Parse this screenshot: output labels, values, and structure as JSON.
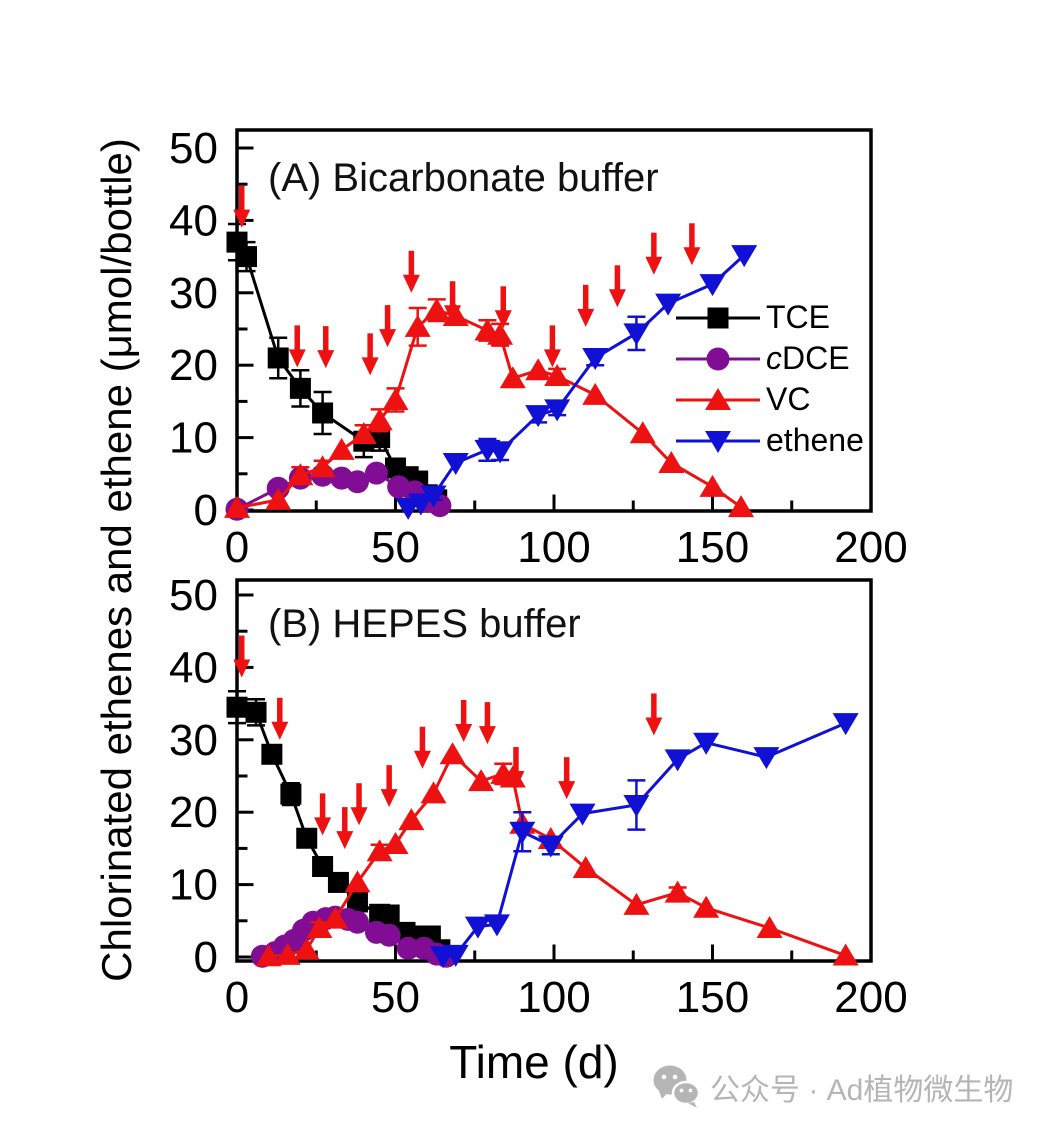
{
  "figure": {
    "ylabel": "Chlorinated ethenes and ethene (μmol/bottle)",
    "xlabel": "Time (d)"
  },
  "colors": {
    "tce": "#000000",
    "cdce": "#800d94",
    "vc": "#ee1111",
    "ethene": "#1111d6",
    "arrow": "#ee1111",
    "axis": "#000000",
    "watermark": "#b5b5b5"
  },
  "legend": {
    "entries": [
      {
        "italic_prefix": "",
        "label": "TCE",
        "series": "TCE"
      },
      {
        "italic_prefix": "c",
        "label": "DCE",
        "series": "cDCE"
      },
      {
        "italic_prefix": "",
        "label": "VC",
        "series": "VC"
      },
      {
        "italic_prefix": "",
        "label": "ethene",
        "series": "ethene"
      }
    ]
  },
  "watermark": {
    "icon": "wechat-icon",
    "text": "公众号 · Ad植物微生物"
  },
  "chart_data": [
    {
      "panel": "A",
      "type": "line",
      "title": "(A) Bicarbonate buffer",
      "xlabel": "Time (d)",
      "ylabel": "Chlorinated ethenes and ethene (μmol/bottle)",
      "xlim": [
        0,
        200
      ],
      "ylim": [
        0,
        50
      ],
      "xticks": [
        0,
        50,
        100,
        150,
        200
      ],
      "yticks": [
        0,
        10,
        20,
        30,
        40,
        50
      ],
      "x_minor_step": 25,
      "y_minor_step": 5,
      "grid": false,
      "legend_position": "inside-right",
      "series": [
        {
          "name": "TCE",
          "marker": "square",
          "color": "#000000",
          "points": [
            [
              0,
              37,
              2.5
            ],
            [
              3,
              35,
              2
            ],
            [
              13,
              21,
              2.8
            ],
            [
              20,
              16.8,
              2.5
            ],
            [
              27,
              13.4,
              2.9
            ],
            [
              40,
              9.5,
              2.2
            ],
            [
              45,
              10,
              1.8
            ],
            [
              50,
              5.8,
              1
            ],
            [
              54,
              4.6,
              0
            ],
            [
              57,
              4,
              0
            ],
            [
              60,
              2.1,
              0
            ],
            [
              63,
              1.4,
              0
            ]
          ]
        },
        {
          "name": "cDCE",
          "marker": "circle",
          "color": "#800d94",
          "points": [
            [
              0,
              0.1,
              0
            ],
            [
              13,
              3,
              0
            ],
            [
              20,
              4.4,
              0.8
            ],
            [
              27,
              4.8,
              0.7
            ],
            [
              33,
              4.4,
              0
            ],
            [
              38,
              3.9,
              0
            ],
            [
              44,
              5.1,
              0.6
            ],
            [
              51,
              3.2,
              0
            ],
            [
              56,
              2.5,
              0
            ],
            [
              60,
              1.2,
              0
            ],
            [
              64,
              0.6,
              0
            ]
          ]
        },
        {
          "name": "VC",
          "marker": "triangle-up",
          "color": "#ee1111",
          "points": [
            [
              0,
              0.3,
              0
            ],
            [
              13,
              1.4,
              0
            ],
            [
              20,
              4.8,
              1.1
            ],
            [
              27,
              5.9,
              0.9
            ],
            [
              33,
              8.3,
              0
            ],
            [
              40,
              10.5,
              1.2
            ],
            [
              45,
              12.4,
              1.5
            ],
            [
              50,
              15.2,
              1.6
            ],
            [
              57,
              25.3,
              2.6
            ],
            [
              63,
              27.6,
              1.5
            ],
            [
              69,
              26.8,
              0
            ],
            [
              79,
              24.8,
              1.4
            ],
            [
              83,
              24.2,
              1.5
            ],
            [
              87,
              18.2,
              0
            ],
            [
              95,
              19.3,
              0
            ],
            [
              101,
              18.5,
              1
            ],
            [
              113,
              15.9,
              0
            ],
            [
              128,
              10.6,
              0
            ],
            [
              137,
              6.5,
              0
            ],
            [
              150,
              3.2,
              0
            ],
            [
              159,
              0.4,
              0
            ]
          ]
        },
        {
          "name": "ethene",
          "marker": "triangle-down",
          "color": "#1111d6",
          "points": [
            [
              54,
              0.3,
              0
            ],
            [
              58,
              0.9,
              0
            ],
            [
              62,
              2,
              0.6
            ],
            [
              69,
              6.5,
              0
            ],
            [
              79,
              8.3,
              1.5
            ],
            [
              83,
              8.1,
              1.2
            ],
            [
              95,
              13.1,
              1
            ],
            [
              101,
              13.9,
              0.8
            ],
            [
              113,
              21,
              1
            ],
            [
              126,
              24.4,
              2.3
            ],
            [
              136,
              28.5,
              0
            ],
            [
              150,
              31.2,
              0
            ],
            [
              160,
              35.2,
              0
            ]
          ]
        }
      ],
      "arrows": [
        [
          1.5,
          39
        ],
        [
          19,
          19.7
        ],
        [
          28,
          19.6
        ],
        [
          42,
          18.6
        ],
        [
          47.5,
          22.5
        ],
        [
          55,
          30
        ],
        [
          68,
          25.8
        ],
        [
          84,
          25.1
        ],
        [
          99.5,
          19.7
        ],
        [
          110,
          25.3
        ],
        [
          120,
          28
        ],
        [
          131.5,
          32.5
        ],
        [
          143.5,
          33.8
        ]
      ]
    },
    {
      "panel": "B",
      "type": "line",
      "title": "(B) HEPES buffer",
      "xlabel": "Time (d)",
      "ylabel": "Chlorinated ethenes and ethene (μmol/bottle)",
      "xlim": [
        0,
        200
      ],
      "ylim": [
        0,
        50
      ],
      "xticks": [
        0,
        50,
        100,
        150,
        200
      ],
      "yticks": [
        0,
        10,
        20,
        30,
        40,
        50
      ],
      "x_minor_step": 25,
      "y_minor_step": 5,
      "grid": false,
      "series": [
        {
          "name": "TCE",
          "marker": "square",
          "color": "#000000",
          "points": [
            [
              0,
              34.5,
              2.2
            ],
            [
              6,
              33.8,
              1.8
            ],
            [
              11,
              28,
              1
            ],
            [
              17,
              22.5,
              1.5
            ],
            [
              22,
              16.4,
              0.8
            ],
            [
              27,
              12.5,
              0
            ],
            [
              32,
              10.3,
              0.8
            ],
            [
              38,
              7.6,
              0
            ],
            [
              45,
              5.9,
              0.8
            ],
            [
              48,
              5.8,
              0
            ],
            [
              53,
              3.4,
              0
            ],
            [
              57,
              2.9,
              0
            ],
            [
              61,
              2.9,
              0
            ],
            [
              64,
              1,
              0
            ]
          ]
        },
        {
          "name": "cDCE",
          "marker": "circle",
          "color": "#800d94",
          "points": [
            [
              8,
              0.1,
              0
            ],
            [
              12,
              0.6,
              0
            ],
            [
              15,
              1.5,
              0
            ],
            [
              18,
              2.3,
              0
            ],
            [
              21,
              3.7,
              0
            ],
            [
              24,
              4.8,
              0
            ],
            [
              28,
              5.3,
              0
            ],
            [
              31,
              5.5,
              0.5
            ],
            [
              35,
              5.2,
              0
            ],
            [
              38,
              4.8,
              0
            ],
            [
              44,
              3.4,
              0
            ],
            [
              48,
              3,
              0
            ],
            [
              54,
              1.2,
              0
            ],
            [
              59,
              1.2,
              0
            ],
            [
              63,
              0.4,
              0
            ],
            [
              66,
              0.1,
              0
            ]
          ]
        },
        {
          "name": "VC",
          "marker": "triangle-up",
          "color": "#ee1111",
          "points": [
            [
              10,
              0.1,
              0
            ],
            [
              16,
              0.3,
              0
            ],
            [
              22,
              1,
              0
            ],
            [
              26,
              4,
              0.8
            ],
            [
              31,
              5.3,
              0
            ],
            [
              38,
              10.3,
              0
            ],
            [
              45,
              14.6,
              0.9
            ],
            [
              50,
              15.6,
              0
            ],
            [
              55,
              18.9,
              0
            ],
            [
              62,
              22.6,
              0
            ],
            [
              68,
              28,
              0
            ],
            [
              77,
              24.3,
              0
            ],
            [
              84,
              25.3,
              1.4
            ],
            [
              87,
              24.8,
              0
            ],
            [
              90,
              18.4,
              0
            ],
            [
              99,
              16.3,
              0
            ],
            [
              110,
              12.3,
              0
            ],
            [
              126,
              7.2,
              0
            ],
            [
              139,
              8.9,
              0.7
            ],
            [
              148,
              6.8,
              0
            ],
            [
              168,
              4,
              0
            ],
            [
              192,
              0.2,
              0
            ]
          ]
        },
        {
          "name": "ethene",
          "marker": "triangle-down",
          "color": "#1111d6",
          "points": [
            [
              65,
              0.1,
              0
            ],
            [
              69,
              0.3,
              0
            ],
            [
              76,
              4.2,
              0
            ],
            [
              82,
              4.5,
              0
            ],
            [
              90,
              17.3,
              2.7
            ],
            [
              99,
              15.4,
              1.2
            ],
            [
              109,
              19.8,
              0
            ],
            [
              126,
              21,
              3.4
            ],
            [
              139,
              27.3,
              0
            ],
            [
              148,
              29.6,
              0
            ],
            [
              167,
              27.6,
              0
            ],
            [
              192,
              32.3,
              0
            ]
          ]
        }
      ],
      "arrows": [
        [
          1.5,
          38.6
        ],
        [
          13.5,
          30
        ],
        [
          27,
          16.8
        ],
        [
          34,
          14.9
        ],
        [
          38.5,
          18.2
        ],
        [
          48,
          20.7
        ],
        [
          58.5,
          26
        ],
        [
          71.5,
          29.7
        ],
        [
          79,
          29.4
        ],
        [
          88,
          23.2
        ],
        [
          104,
          21.8
        ],
        [
          131.5,
          30.6
        ]
      ]
    }
  ]
}
